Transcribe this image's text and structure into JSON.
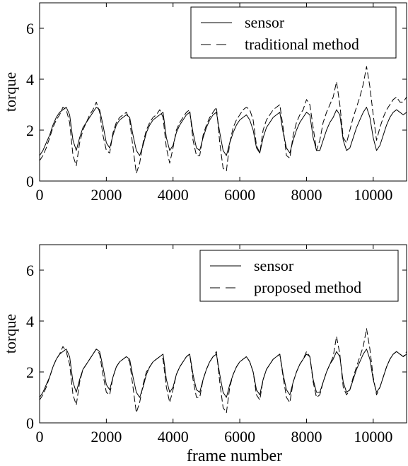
{
  "chart_data": [
    {
      "type": "line",
      "title": "",
      "xlabel": "",
      "ylabel": "torque",
      "xlim": [
        0,
        11000
      ],
      "ylim": [
        0,
        7
      ],
      "xticks": [
        0,
        2000,
        4000,
        6000,
        8000,
        10000
      ],
      "yticks": [
        0,
        2,
        4,
        6
      ],
      "xtick_labels": [
        "0",
        "2000",
        "4000",
        "6000",
        "8000",
        "10000"
      ],
      "ytick_labels": [
        "0",
        "2",
        "4",
        "6"
      ],
      "grid": false,
      "legend_position": "top-right",
      "series": [
        {
          "name": "sensor",
          "style": "solid",
          "color": "#000000",
          "x": [
            0,
            100,
            200,
            300,
            400,
            500,
            600,
            700,
            800,
            900,
            1000,
            1100,
            1200,
            1300,
            1400,
            1500,
            1600,
            1700,
            1800,
            1900,
            2000,
            2100,
            2200,
            2300,
            2400,
            2500,
            2600,
            2700,
            2800,
            2900,
            3000,
            3100,
            3200,
            3300,
            3400,
            3500,
            3600,
            3700,
            3800,
            3900,
            4000,
            4100,
            4200,
            4300,
            4400,
            4500,
            4600,
            4700,
            4800,
            4900,
            5000,
            5100,
            5200,
            5300,
            5400,
            5500,
            5600,
            5700,
            5800,
            5900,
            6000,
            6100,
            6200,
            6300,
            6400,
            6500,
            6600,
            6700,
            6800,
            6900,
            7000,
            7100,
            7200,
            7300,
            7400,
            7500,
            7600,
            7700,
            7800,
            7900,
            8000,
            8100,
            8200,
            8300,
            8400,
            8500,
            8600,
            8700,
            8800,
            8900,
            9000,
            9100,
            9200,
            9300,
            9400,
            9500,
            9600,
            9700,
            9800,
            9900,
            10000,
            10100,
            10200,
            10300,
            10400,
            10500,
            10600,
            10700,
            10800,
            10900,
            11000
          ],
          "values": [
            1.0,
            1.2,
            1.5,
            1.8,
            2.2,
            2.5,
            2.7,
            2.8,
            2.9,
            2.6,
            1.6,
            1.2,
            1.7,
            2.1,
            2.3,
            2.5,
            2.7,
            2.9,
            2.8,
            2.2,
            1.5,
            1.3,
            1.8,
            2.2,
            2.4,
            2.5,
            2.6,
            2.5,
            1.8,
            1.2,
            1.0,
            1.4,
            1.9,
            2.2,
            2.4,
            2.5,
            2.6,
            2.7,
            1.7,
            1.2,
            1.4,
            1.9,
            2.2,
            2.4,
            2.6,
            2.7,
            1.9,
            1.3,
            1.2,
            1.7,
            2.1,
            2.4,
            2.6,
            2.7,
            1.9,
            1.2,
            1.0,
            1.5,
            1.9,
            2.2,
            2.4,
            2.5,
            2.6,
            2.4,
            2.0,
            1.3,
            1.1,
            1.7,
            2.1,
            2.3,
            2.5,
            2.6,
            2.7,
            1.9,
            1.3,
            1.1,
            1.6,
            2.0,
            2.3,
            2.5,
            2.7,
            2.6,
            1.7,
            1.2,
            1.2,
            1.6,
            2.0,
            2.3,
            2.5,
            2.8,
            2.6,
            1.6,
            1.2,
            1.3,
            1.7,
            2.1,
            2.4,
            2.7,
            2.9,
            2.5,
            1.7,
            1.2,
            1.4,
            1.8,
            2.2,
            2.5,
            2.7,
            2.8,
            2.7,
            2.6,
            2.7
          ]
        },
        {
          "name": "traditional method",
          "style": "dashed",
          "color": "#000000",
          "x": [
            0,
            100,
            200,
            300,
            400,
            500,
            600,
            700,
            800,
            900,
            1000,
            1100,
            1200,
            1300,
            1400,
            1500,
            1600,
            1700,
            1800,
            1900,
            2000,
            2100,
            2200,
            2300,
            2400,
            2500,
            2600,
            2700,
            2800,
            2900,
            3000,
            3100,
            3200,
            3300,
            3400,
            3500,
            3600,
            3700,
            3800,
            3900,
            4000,
            4100,
            4200,
            4300,
            4400,
            4500,
            4600,
            4700,
            4800,
            4900,
            5000,
            5100,
            5200,
            5300,
            5400,
            5500,
            5600,
            5700,
            5800,
            5900,
            6000,
            6100,
            6200,
            6300,
            6400,
            6500,
            6600,
            6700,
            6800,
            6900,
            7000,
            7100,
            7200,
            7300,
            7400,
            7500,
            7600,
            7700,
            7800,
            7900,
            8000,
            8100,
            8200,
            8300,
            8400,
            8500,
            8600,
            8700,
            8800,
            8900,
            9000,
            9100,
            9200,
            9300,
            9400,
            9500,
            9600,
            9700,
            9800,
            9900,
            10000,
            10100,
            10200,
            10300,
            10400,
            10500,
            10600,
            10700,
            10800,
            10900,
            11000
          ],
          "values": [
            0.8,
            1.0,
            1.3,
            1.7,
            2.1,
            2.4,
            2.6,
            2.9,
            2.8,
            2.3,
            1.0,
            0.6,
            1.5,
            2.0,
            2.3,
            2.6,
            2.8,
            3.1,
            2.7,
            1.8,
            1.2,
            1.1,
            1.9,
            2.3,
            2.5,
            2.6,
            2.7,
            2.4,
            1.3,
            0.3,
            0.7,
            1.5,
            2.0,
            2.3,
            2.5,
            2.6,
            2.8,
            2.5,
            1.3,
            0.7,
            1.3,
            2.0,
            2.3,
            2.5,
            2.7,
            2.8,
            1.6,
            1.0,
            1.0,
            1.8,
            2.2,
            2.5,
            2.7,
            2.9,
            1.5,
            0.5,
            0.4,
            1.5,
            2.1,
            2.4,
            2.6,
            2.8,
            2.9,
            2.8,
            2.4,
            1.4,
            1.1,
            2.0,
            2.4,
            2.6,
            2.8,
            2.9,
            3.0,
            2.1,
            1.0,
            0.9,
            1.8,
            2.3,
            2.6,
            2.8,
            3.2,
            3.0,
            2.1,
            1.2,
            1.6,
            2.3,
            2.7,
            3.0,
            3.3,
            3.9,
            3.0,
            1.7,
            1.5,
            2.0,
            2.5,
            2.9,
            3.3,
            3.8,
            4.5,
            3.7,
            2.6,
            1.6,
            2.1,
            2.5,
            2.8,
            3.0,
            3.2,
            3.3,
            3.1,
            3.1,
            3.3
          ]
        }
      ]
    },
    {
      "type": "line",
      "title": "",
      "xlabel": "frame number",
      "ylabel": "torque",
      "xlim": [
        0,
        11000
      ],
      "ylim": [
        0,
        7
      ],
      "xticks": [
        0,
        2000,
        4000,
        6000,
        8000,
        10000
      ],
      "yticks": [
        0,
        2,
        4,
        6
      ],
      "xtick_labels": [
        "0",
        "2000",
        "4000",
        "6000",
        "8000",
        "10000"
      ],
      "ytick_labels": [
        "0",
        "2",
        "4",
        "6"
      ],
      "grid": false,
      "legend_position": "top-right",
      "series": [
        {
          "name": "sensor",
          "style": "solid",
          "color": "#000000",
          "x": [
            0,
            100,
            200,
            300,
            400,
            500,
            600,
            700,
            800,
            900,
            1000,
            1100,
            1200,
            1300,
            1400,
            1500,
            1600,
            1700,
            1800,
            1900,
            2000,
            2100,
            2200,
            2300,
            2400,
            2500,
            2600,
            2700,
            2800,
            2900,
            3000,
            3100,
            3200,
            3300,
            3400,
            3500,
            3600,
            3700,
            3800,
            3900,
            4000,
            4100,
            4200,
            4300,
            4400,
            4500,
            4600,
            4700,
            4800,
            4900,
            5000,
            5100,
            5200,
            5300,
            5400,
            5500,
            5600,
            5700,
            5800,
            5900,
            6000,
            6100,
            6200,
            6300,
            6400,
            6500,
            6600,
            6700,
            6800,
            6900,
            7000,
            7100,
            7200,
            7300,
            7400,
            7500,
            7600,
            7700,
            7800,
            7900,
            8000,
            8100,
            8200,
            8300,
            8400,
            8500,
            8600,
            8700,
            8800,
            8900,
            9000,
            9100,
            9200,
            9300,
            9400,
            9500,
            9600,
            9700,
            9800,
            9900,
            10000,
            10100,
            10200,
            10300,
            10400,
            10500,
            10600,
            10700,
            10800,
            10900,
            11000
          ],
          "values": [
            1.0,
            1.2,
            1.5,
            1.8,
            2.2,
            2.5,
            2.7,
            2.8,
            2.9,
            2.6,
            1.6,
            1.2,
            1.7,
            2.1,
            2.3,
            2.5,
            2.7,
            2.9,
            2.8,
            2.2,
            1.5,
            1.3,
            1.8,
            2.2,
            2.4,
            2.5,
            2.6,
            2.5,
            1.8,
            1.2,
            1.0,
            1.4,
            1.9,
            2.2,
            2.4,
            2.5,
            2.6,
            2.7,
            1.7,
            1.2,
            1.4,
            1.9,
            2.2,
            2.4,
            2.6,
            2.7,
            1.9,
            1.3,
            1.2,
            1.7,
            2.1,
            2.4,
            2.6,
            2.7,
            1.9,
            1.2,
            1.0,
            1.5,
            1.9,
            2.2,
            2.4,
            2.5,
            2.6,
            2.4,
            2.0,
            1.3,
            1.1,
            1.7,
            2.1,
            2.3,
            2.5,
            2.6,
            2.7,
            1.9,
            1.3,
            1.1,
            1.6,
            2.0,
            2.3,
            2.5,
            2.7,
            2.6,
            1.7,
            1.2,
            1.2,
            1.6,
            2.0,
            2.3,
            2.5,
            2.8,
            2.6,
            1.6,
            1.2,
            1.3,
            1.7,
            2.1,
            2.4,
            2.7,
            2.9,
            2.5,
            1.7,
            1.2,
            1.4,
            1.8,
            2.2,
            2.5,
            2.7,
            2.8,
            2.7,
            2.6,
            2.7
          ]
        },
        {
          "name": "proposed method",
          "style": "dashed",
          "color": "#000000",
          "x": [
            0,
            100,
            200,
            300,
            400,
            500,
            600,
            700,
            800,
            900,
            1000,
            1100,
            1200,
            1300,
            1400,
            1500,
            1600,
            1700,
            1800,
            1900,
            2000,
            2100,
            2200,
            2300,
            2400,
            2500,
            2600,
            2700,
            2800,
            2900,
            3000,
            3100,
            3200,
            3300,
            3400,
            3500,
            3600,
            3700,
            3800,
            3900,
            4000,
            4100,
            4200,
            4300,
            4400,
            4500,
            4600,
            4700,
            4800,
            4900,
            5000,
            5100,
            5200,
            5300,
            5400,
            5500,
            5600,
            5700,
            5800,
            5900,
            6000,
            6100,
            6200,
            6300,
            6400,
            6500,
            6600,
            6700,
            6800,
            6900,
            7000,
            7100,
            7200,
            7300,
            7400,
            7500,
            7600,
            7700,
            7800,
            7900,
            8000,
            8100,
            8200,
            8300,
            8400,
            8500,
            8600,
            8700,
            8800,
            8900,
            9000,
            9100,
            9200,
            9300,
            9400,
            9500,
            9600,
            9700,
            9800,
            9900,
            10000,
            10100,
            10200,
            10300,
            10400,
            10500,
            10600,
            10700,
            10800,
            10900,
            11000
          ],
          "values": [
            0.9,
            1.1,
            1.4,
            1.8,
            2.2,
            2.5,
            2.7,
            3.0,
            2.8,
            2.3,
            1.1,
            0.7,
            1.6,
            2.1,
            2.3,
            2.5,
            2.7,
            2.9,
            2.7,
            1.9,
            1.2,
            1.1,
            1.8,
            2.2,
            2.4,
            2.5,
            2.6,
            2.4,
            1.4,
            0.4,
            0.8,
            1.5,
            2.0,
            2.2,
            2.4,
            2.5,
            2.6,
            2.5,
            1.4,
            0.8,
            1.3,
            1.9,
            2.2,
            2.4,
            2.6,
            2.7,
            1.7,
            1.0,
            1.0,
            1.7,
            2.1,
            2.4,
            2.6,
            2.8,
            1.6,
            0.6,
            0.4,
            1.4,
            1.9,
            2.2,
            2.4,
            2.5,
            2.6,
            2.4,
            2.0,
            1.1,
            0.9,
            1.7,
            2.1,
            2.3,
            2.5,
            2.6,
            2.7,
            1.8,
            1.0,
            0.8,
            1.6,
            2.0,
            2.3,
            2.5,
            2.8,
            2.6,
            1.6,
            1.0,
            1.1,
            1.6,
            2.0,
            2.3,
            2.6,
            3.4,
            2.7,
            1.4,
            1.1,
            1.3,
            1.8,
            2.2,
            2.6,
            3.0,
            3.7,
            2.9,
            1.8,
            1.1,
            1.4,
            1.8,
            2.2,
            2.5,
            2.7,
            2.8,
            2.7,
            2.6,
            2.8
          ]
        }
      ]
    }
  ]
}
